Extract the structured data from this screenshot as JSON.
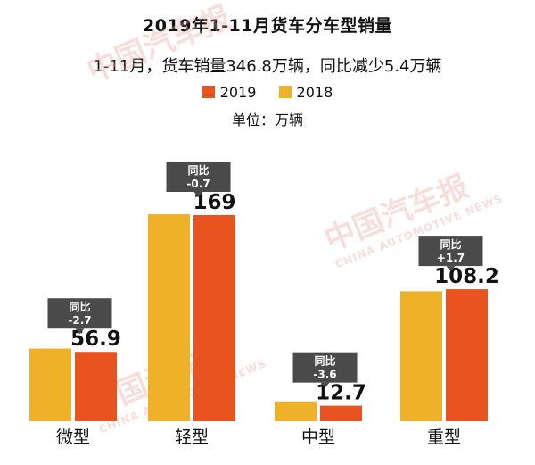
{
  "title": "2019年1-11月货车分车型销量",
  "subtitle": "1-11月，货车销量346.8万辆，同比减少5.4万辆",
  "unit": "单位：万辆",
  "watermark": {
    "text_cn": "中国汽车报",
    "text_en": "CHINA AUTOMOTIVE NEWS"
  },
  "colors": {
    "series_2019": "#e9531f",
    "series_2018": "#f0b12a",
    "tag_bg": "#4a4a4a"
  },
  "chart_data": {
    "type": "bar",
    "title": "2019年1-11月货车分车型销量",
    "categories": [
      "微型",
      "轻型",
      "中型",
      "重型"
    ],
    "series": [
      {
        "name": "2019",
        "values": [
          56.9,
          169,
          12.7,
          108.2
        ]
      },
      {
        "name": "2018",
        "values": [
          59.6,
          169.7,
          16.3,
          106.5
        ]
      }
    ],
    "data_labels": [
      "56.9",
      "169",
      "12.7",
      "108.2"
    ],
    "yoy_label": "同比",
    "yoy_changes": [
      "-2.7",
      "-0.7",
      "-3.6",
      "+1.7"
    ],
    "ylim": [
      0,
      180
    ],
    "xlabel": "",
    "ylabel": "万辆",
    "legend": [
      "2019",
      "2018"
    ]
  }
}
